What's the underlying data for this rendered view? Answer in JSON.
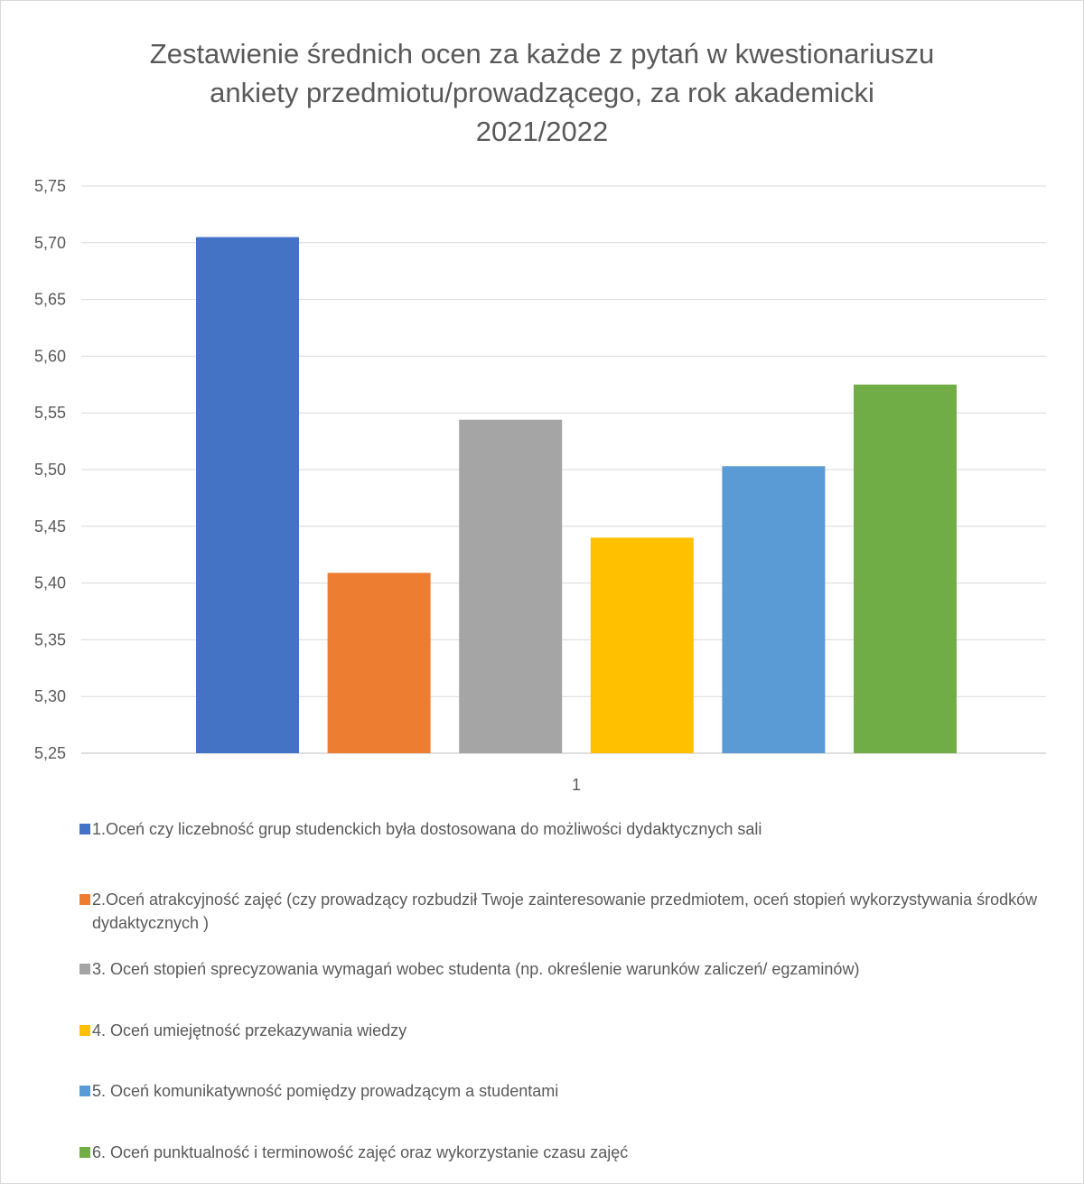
{
  "chart_data": {
    "type": "bar",
    "title": "Zestawienie średnich ocen za każde z pytań w kwestionariuszu\nankiety przedmiotu/prowadzącego, za rok akademicki\n2021/2022",
    "categories": [
      "1"
    ],
    "ylim": [
      5.25,
      5.75
    ],
    "yticks": [
      "5,25",
      "5,30",
      "5,35",
      "5,40",
      "5,45",
      "5,50",
      "5,55",
      "5,60",
      "5,65",
      "5,70",
      "5,75"
    ],
    "grid": true,
    "legend_position": "bottom",
    "series": [
      {
        "name": "1.Oceń czy liczebność grup studenckich była dostosowana do możliwości dydaktycznych sali",
        "values": [
          5.705
        ],
        "color": "#4472c4"
      },
      {
        "name": "2.Oceń atrakcyjność zajęć (czy prowadzący rozbudził Twoje zainteresowanie przedmiotem, oceń stopień wykorzystywania środków dydaktycznych )",
        "values": [
          5.409
        ],
        "color": "#ed7d31"
      },
      {
        "name": "3. Oceń stopień sprecyzowania wymagań wobec studenta (np. określenie warunków zaliczeń/ egzaminów)",
        "values": [
          5.544
        ],
        "color": "#a5a5a5"
      },
      {
        "name": "4. Oceń umiejętność przekazywania wiedzy",
        "values": [
          5.44
        ],
        "color": "#ffc000"
      },
      {
        "name": "5. Oceń komunikatywność pomiędzy prowadzącym a studentami",
        "values": [
          5.503
        ],
        "color": "#5b9bd5"
      },
      {
        "name": "6. Oceń punktualność i terminowość zajęć oraz wykorzystanie czasu zajęć",
        "values": [
          5.575
        ],
        "color": "#70ad47"
      }
    ]
  }
}
